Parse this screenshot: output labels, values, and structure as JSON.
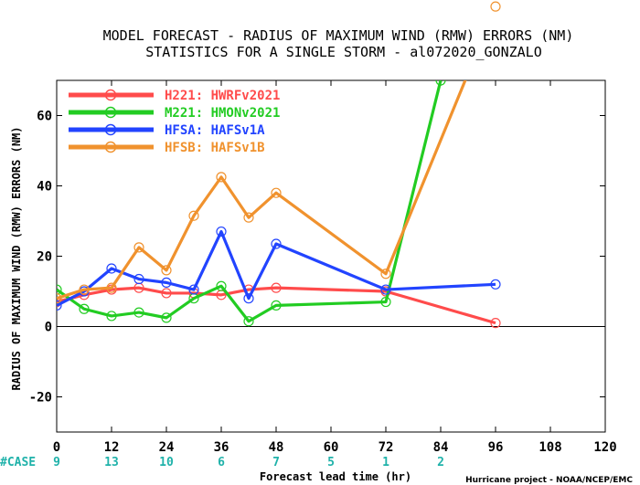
{
  "chart_data": {
    "type": "line",
    "title": "MODEL FORECAST - RADIUS OF MAXIMUM WIND (RMW) ERRORS (NM)",
    "subtitle": "STATISTICS FOR A SINGLE STORM - al072020_GONZALO",
    "xlabel": "Forecast lead time (hr)",
    "ylabel": "RADIUS OF MAXIMUM WIND (RMW) ERRORS (NM)",
    "xlim": [
      0,
      120
    ],
    "ylim": [
      -30,
      70
    ],
    "xticks": [
      "0",
      "12",
      "24",
      "36",
      "48",
      "60",
      "72",
      "84",
      "96",
      "108",
      "120"
    ],
    "yticks": [
      "-20",
      "0",
      "20",
      "40",
      "60"
    ],
    "grid": false,
    "legend_position": "top-left",
    "series": [
      {
        "name": "H221: HWRFv2021",
        "color": "#ff4b4b",
        "x": [
          0,
          6,
          12,
          18,
          24,
          30,
          36,
          42,
          48,
          72,
          96
        ],
        "y": [
          7,
          9,
          10.5,
          11,
          9.5,
          9.5,
          9,
          10.5,
          11,
          10,
          1
        ]
      },
      {
        "name": "M221: HMONv2021",
        "color": "#22cc22",
        "x": [
          0,
          6,
          12,
          18,
          24,
          30,
          36,
          42,
          48,
          72,
          84
        ],
        "y": [
          10.5,
          5,
          3,
          4,
          2.5,
          8,
          11.5,
          1.5,
          6,
          7,
          70
        ]
      },
      {
        "name": "HFSA: HAFSv1A",
        "color": "#2244ff",
        "x": [
          0,
          6,
          12,
          18,
          24,
          30,
          36,
          42,
          48,
          72,
          96
        ],
        "y": [
          6,
          10,
          16.5,
          13.5,
          12.5,
          10.5,
          27,
          8,
          23.5,
          10.5,
          12
        ]
      },
      {
        "name": "HFSB: HAFSv1B",
        "color": "#f0922e",
        "x": [
          0,
          6,
          12,
          18,
          24,
          30,
          36,
          42,
          48,
          72,
          96
        ],
        "y": [
          8,
          10.5,
          11,
          22.5,
          16,
          31.5,
          42.5,
          31,
          38,
          15,
          91
        ]
      }
    ],
    "case_label": "#CASE",
    "cases": [
      {
        "x": 0,
        "n": "9"
      },
      {
        "x": 12,
        "n": "13"
      },
      {
        "x": 24,
        "n": "10"
      },
      {
        "x": 36,
        "n": "6"
      },
      {
        "x": 48,
        "n": "7"
      },
      {
        "x": 60,
        "n": "5"
      },
      {
        "x": 72,
        "n": "1"
      },
      {
        "x": 84,
        "n": "2"
      }
    ]
  },
  "credit": "Hurricane project - NOAA/NCEP/EMC",
  "colors": {
    "case": "#20b2aa",
    "axis": "#000000"
  }
}
